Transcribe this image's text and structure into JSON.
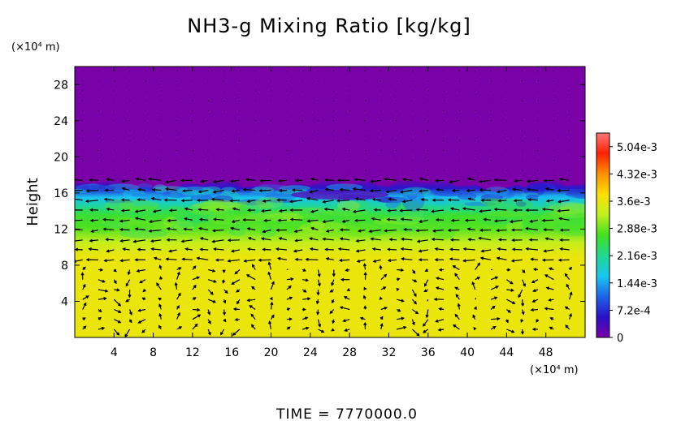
{
  "chart_data": {
    "type": "heatmap",
    "title": "NH3-g Mixing Ratio [kg/kg]",
    "ylabel": "Height",
    "y_unit": "(×10⁴ m)",
    "x_unit": "(×10⁴ m)",
    "xlim": [
      0,
      52
    ],
    "ylim": [
      0,
      30
    ],
    "x_ticks": [
      "4",
      "8",
      "12",
      "16",
      "20",
      "24",
      "28",
      "32",
      "36",
      "40",
      "44",
      "48"
    ],
    "y_ticks": [
      "4",
      "8",
      "12",
      "16",
      "20",
      "24",
      "28"
    ],
    "colorbar": {
      "vmin": 0,
      "vmax": 0.0054,
      "tick_labels": [
        "0",
        "7.2e-4",
        "1.44e-3",
        "2.16e-3",
        "2.88e-3",
        "3.6e-3",
        "4.32e-3",
        "5.04e-3"
      ],
      "tick_values": [
        0,
        0.00072,
        0.00144,
        0.00216,
        0.00288,
        0.0036,
        0.00432,
        0.00504
      ],
      "colors": [
        "#7a00a8",
        "#2a10c8",
        "#1e64e8",
        "#18c8f0",
        "#20d890",
        "#40e020",
        "#c0f020",
        "#ffe000",
        "#ff9000",
        "#ff2000",
        "#ff7878"
      ]
    },
    "vertical_profile": [
      {
        "height": 0,
        "value": 0.0036
      },
      {
        "height": 9,
        "value": 0.0036
      },
      {
        "height": 10.5,
        "value": 0.0033
      },
      {
        "height": 12,
        "value": 0.0028
      },
      {
        "height": 13.5,
        "value": 0.0026
      },
      {
        "height": 14.5,
        "value": 0.0021
      },
      {
        "height": 15.5,
        "value": 0.0016
      },
      {
        "height": 16.5,
        "value": 0.0006
      },
      {
        "height": 17.5,
        "value": 0
      },
      {
        "height": 30,
        "value": 0
      }
    ],
    "overlay": "wind vectors"
  },
  "footer": {
    "time_label": "TIME = 7770000.0"
  }
}
